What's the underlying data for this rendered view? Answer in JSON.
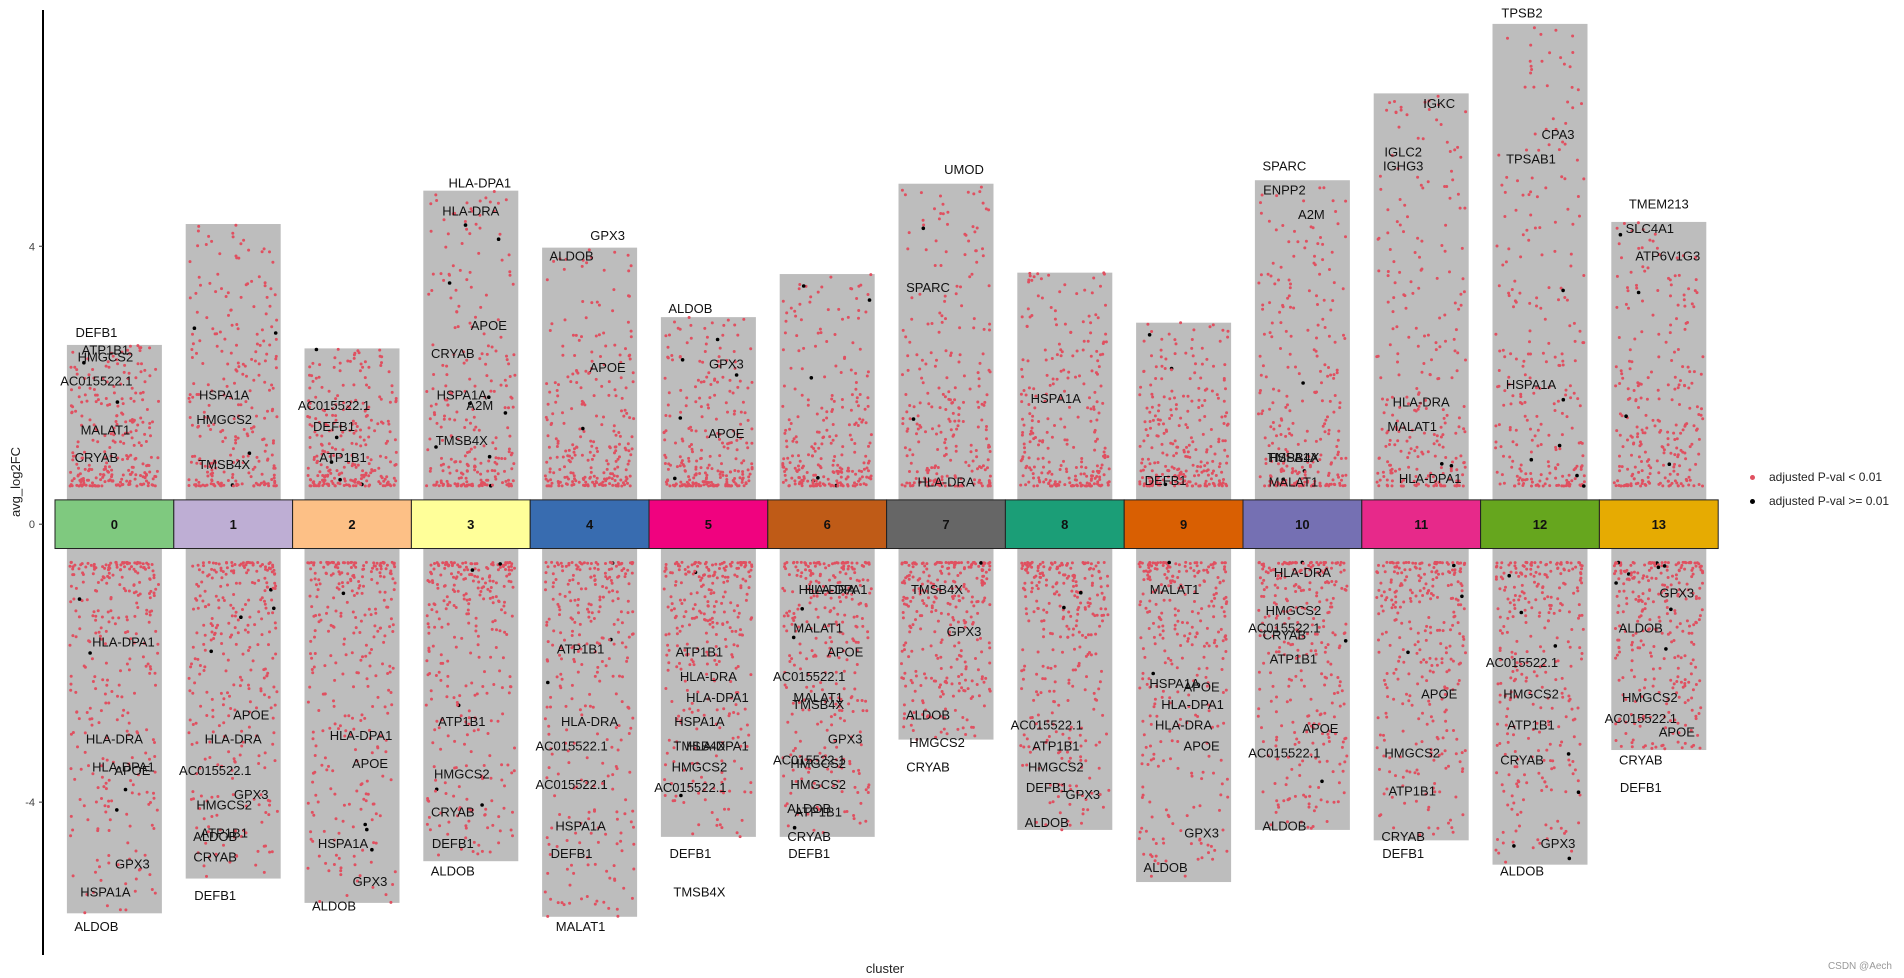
{
  "watermark": "CSDN @Aech",
  "legend": {
    "items": [
      {
        "label": "adjusted P-val < 0.01",
        "color": "#e05060"
      },
      {
        "label": "adjusted P-val >= 0.01",
        "color": "#000000"
      }
    ]
  },
  "chart_data": {
    "type": "scatter",
    "subtype": "jitter-volcano per cluster",
    "xlabel": "cluster",
    "ylabel": "avg_log2FC",
    "ylim": [
      -6.2,
      7.4
    ],
    "yticks": [
      -4,
      0,
      4
    ],
    "grid": false,
    "legend_position": "right",
    "clusters": [
      {
        "id": "0",
        "color": "#7fc97f",
        "up_max": 2.58,
        "down_min": -5.6
      },
      {
        "id": "1",
        "color": "#beaed4",
        "up_max": 4.32,
        "down_min": -5.1
      },
      {
        "id": "2",
        "color": "#fdc086",
        "up_max": 2.53,
        "down_min": -5.45
      },
      {
        "id": "3",
        "color": "#ffff99",
        "up_max": 4.8,
        "down_min": -4.85
      },
      {
        "id": "4",
        "color": "#386cb0",
        "up_max": 3.98,
        "down_min": -5.65
      },
      {
        "id": "5",
        "color": "#f0027f",
        "up_max": 2.98,
        "down_min": -4.5
      },
      {
        "id": "6",
        "color": "#bf5b17",
        "up_max": 3.6,
        "down_min": -4.5
      },
      {
        "id": "7",
        "color": "#666666",
        "up_max": 4.9,
        "down_min": -3.1
      },
      {
        "id": "8",
        "color": "#1b9e77",
        "up_max": 3.62,
        "down_min": -4.4
      },
      {
        "id": "9",
        "color": "#d95f02",
        "up_max": 2.9,
        "down_min": -5.15
      },
      {
        "id": "10",
        "color": "#7570b3",
        "up_max": 4.95,
        "down_min": -4.4
      },
      {
        "id": "11",
        "color": "#e7298a",
        "up_max": 6.2,
        "down_min": -4.55
      },
      {
        "id": "12",
        "color": "#66a61e",
        "up_max": 7.2,
        "down_min": -4.9
      },
      {
        "id": "13",
        "color": "#e6ab02",
        "up_max": 4.35,
        "down_min": -3.25
      }
    ],
    "gene_labels": [
      {
        "cluster": 0,
        "text": "DEFB1",
        "y": 2.75
      },
      {
        "cluster": 0,
        "text": "ATP1B1",
        "y": 2.5
      },
      {
        "cluster": 0,
        "text": "HMGCS2",
        "y": 2.4
      },
      {
        "cluster": 0,
        "text": "AC015522.1",
        "y": 2.05
      },
      {
        "cluster": 0,
        "text": "MALAT1",
        "y": 1.35
      },
      {
        "cluster": 0,
        "text": "CRYAB",
        "y": 0.95
      },
      {
        "cluster": 0,
        "text": "HLA-DPA1",
        "y": -1.7
      },
      {
        "cluster": 0,
        "text": "HLA-DRA",
        "y": -3.1
      },
      {
        "cluster": 0,
        "text": "HLA-DPA1",
        "y": -3.5
      },
      {
        "cluster": 0,
        "text": "APOE",
        "y": -3.55
      },
      {
        "cluster": 0,
        "text": "GPX3",
        "y": -4.9
      },
      {
        "cluster": 0,
        "text": "HSPA1A",
        "y": -5.3
      },
      {
        "cluster": 0,
        "text": "ALDOB",
        "y": -5.8
      },
      {
        "cluster": 1,
        "text": "HSPA1A",
        "y": 1.85
      },
      {
        "cluster": 1,
        "text": "HMGCS2",
        "y": 1.5
      },
      {
        "cluster": 1,
        "text": "TMSB4X",
        "y": 0.85
      },
      {
        "cluster": 1,
        "text": "APOE",
        "y": -2.75
      },
      {
        "cluster": 1,
        "text": "HLA-DRA",
        "y": -3.1
      },
      {
        "cluster": 1,
        "text": "AC015522.1",
        "y": -3.55
      },
      {
        "cluster": 1,
        "text": "GPX3",
        "y": -3.9
      },
      {
        "cluster": 1,
        "text": "HMGCS2",
        "y": -4.05
      },
      {
        "cluster": 1,
        "text": "ALDOB",
        "y": -4.5
      },
      {
        "cluster": 1,
        "text": "ATP1B1",
        "y": -4.45
      },
      {
        "cluster": 1,
        "text": "CRYAB",
        "y": -4.8
      },
      {
        "cluster": 1,
        "text": "DEFB1",
        "y": -5.35
      },
      {
        "cluster": 2,
        "text": "AC015522.1",
        "y": 1.7
      },
      {
        "cluster": 2,
        "text": "DEFB1",
        "y": 1.4
      },
      {
        "cluster": 2,
        "text": "ATP1B1",
        "y": 0.95
      },
      {
        "cluster": 2,
        "text": "HLA-DPA1",
        "y": -3.05
      },
      {
        "cluster": 2,
        "text": "APOE",
        "y": -3.45
      },
      {
        "cluster": 2,
        "text": "HSPA1A",
        "y": -4.6
      },
      {
        "cluster": 2,
        "text": "GPX3",
        "y": -5.15
      },
      {
        "cluster": 2,
        "text": "ALDOB",
        "y": -5.5
      },
      {
        "cluster": 3,
        "text": "HLA-DPA1",
        "y": 4.9
      },
      {
        "cluster": 3,
        "text": "HLA-DRA",
        "y": 4.5
      },
      {
        "cluster": 3,
        "text": "CRYAB",
        "y": 2.45
      },
      {
        "cluster": 3,
        "text": "APOE",
        "y": 2.85
      },
      {
        "cluster": 3,
        "text": "HSPA1A",
        "y": 1.85
      },
      {
        "cluster": 3,
        "text": "A2M",
        "y": 1.7
      },
      {
        "cluster": 3,
        "text": "TMSB4X",
        "y": 1.2
      },
      {
        "cluster": 3,
        "text": "ATP1B1",
        "y": -2.85
      },
      {
        "cluster": 3,
        "text": "HMGCS2",
        "y": -3.6
      },
      {
        "cluster": 3,
        "text": "CRYAB",
        "y": -4.15
      },
      {
        "cluster": 3,
        "text": "DEFB1",
        "y": -4.6
      },
      {
        "cluster": 3,
        "text": "ALDOB",
        "y": -5.0
      },
      {
        "cluster": 4,
        "text": "GPX3",
        "y": 4.15
      },
      {
        "cluster": 4,
        "text": "ALDOB",
        "y": 3.85
      },
      {
        "cluster": 4,
        "text": "APOE",
        "y": 2.25
      },
      {
        "cluster": 4,
        "text": "ATP1B1",
        "y": -1.8
      },
      {
        "cluster": 4,
        "text": "AC015522.1",
        "y": -3.2
      },
      {
        "cluster": 4,
        "text": "HLA-DRA",
        "y": -2.85
      },
      {
        "cluster": 4,
        "text": "AC015522.1",
        "y": -3.75
      },
      {
        "cluster": 4,
        "text": "HSPA1A",
        "y": -4.35
      },
      {
        "cluster": 4,
        "text": "DEFB1",
        "y": -4.75
      },
      {
        "cluster": 4,
        "text": "MALAT1",
        "y": -5.8
      },
      {
        "cluster": 5,
        "text": "ALDOB",
        "y": 3.1
      },
      {
        "cluster": 5,
        "text": "GPX3",
        "y": 2.3
      },
      {
        "cluster": 5,
        "text": "APOE",
        "y": 1.3
      },
      {
        "cluster": 5,
        "text": "ATP1B1",
        "y": -1.85
      },
      {
        "cluster": 5,
        "text": "HLA-DRA",
        "y": -2.2
      },
      {
        "cluster": 5,
        "text": "HLA-DPA1",
        "y": -2.5
      },
      {
        "cluster": 5,
        "text": "HSPA1A",
        "y": -2.85
      },
      {
        "cluster": 5,
        "text": "HLA-DPA1",
        "y": -3.2
      },
      {
        "cluster": 5,
        "text": "TMSB4X",
        "y": -3.2
      },
      {
        "cluster": 5,
        "text": "HMGCS2",
        "y": -3.5
      },
      {
        "cluster": 5,
        "text": "AC015522.1",
        "y": -3.8
      },
      {
        "cluster": 5,
        "text": "DEFB1",
        "y": -4.75
      },
      {
        "cluster": 5,
        "text": "TMSB4X",
        "y": -5.3
      },
      {
        "cluster": 6,
        "text": "HLA-DPA1",
        "y": -0.95
      },
      {
        "cluster": 6,
        "text": "HLA-DRA",
        "y": -0.95
      },
      {
        "cluster": 6,
        "text": "MALAT1",
        "y": -1.5
      },
      {
        "cluster": 6,
        "text": "APOE",
        "y": -1.85
      },
      {
        "cluster": 6,
        "text": "AC015522.1",
        "y": -2.2
      },
      {
        "cluster": 6,
        "text": "MALAT1",
        "y": -2.5
      },
      {
        "cluster": 6,
        "text": "TMSB4X",
        "y": -2.6
      },
      {
        "cluster": 6,
        "text": "GPX3",
        "y": -3.1
      },
      {
        "cluster": 6,
        "text": "HMGCS2",
        "y": -3.45
      },
      {
        "cluster": 6,
        "text": "AC015522.1",
        "y": -3.4
      },
      {
        "cluster": 6,
        "text": "HMGCS2",
        "y": -3.75
      },
      {
        "cluster": 6,
        "text": "ATP1B1",
        "y": -4.15
      },
      {
        "cluster": 6,
        "text": "ALDOB",
        "y": -4.1
      },
      {
        "cluster": 6,
        "text": "CRYAB",
        "y": -4.5
      },
      {
        "cluster": 6,
        "text": "DEFB1",
        "y": -4.75
      },
      {
        "cluster": 7,
        "text": "UMOD",
        "y": 5.1
      },
      {
        "cluster": 7,
        "text": "SPARC",
        "y": 3.4
      },
      {
        "cluster": 7,
        "text": "HLA-DRA",
        "y": 0.6
      },
      {
        "cluster": 7,
        "text": "TMSB4X",
        "y": -0.95
      },
      {
        "cluster": 7,
        "text": "GPX3",
        "y": -1.55
      },
      {
        "cluster": 7,
        "text": "ALDOB",
        "y": -2.75
      },
      {
        "cluster": 7,
        "text": "HMGCS2",
        "y": -3.15
      },
      {
        "cluster": 7,
        "text": "CRYAB",
        "y": -3.5
      },
      {
        "cluster": 8,
        "text": "HSPA1A",
        "y": 1.8
      },
      {
        "cluster": 8,
        "text": "AC015522.1",
        "y": -2.9
      },
      {
        "cluster": 8,
        "text": "ATP1B1",
        "y": -3.2
      },
      {
        "cluster": 8,
        "text": "HMGCS2",
        "y": -3.5
      },
      {
        "cluster": 8,
        "text": "DEFB1",
        "y": -3.8
      },
      {
        "cluster": 8,
        "text": "GPX3",
        "y": -3.9
      },
      {
        "cluster": 8,
        "text": "ALDOB",
        "y": -4.3
      },
      {
        "cluster": 9,
        "text": "DEFB1",
        "y": 0.62
      },
      {
        "cluster": 9,
        "text": "MALAT1",
        "y": -0.95
      },
      {
        "cluster": 9,
        "text": "APOE",
        "y": -2.35
      },
      {
        "cluster": 9,
        "text": "HSPA1A",
        "y": -2.3
      },
      {
        "cluster": 9,
        "text": "HLA-DPA1",
        "y": -2.6
      },
      {
        "cluster": 9,
        "text": "HLA-DRA",
        "y": -2.9
      },
      {
        "cluster": 9,
        "text": "APOE",
        "y": -3.2
      },
      {
        "cluster": 9,
        "text": "GPX3",
        "y": -4.45
      },
      {
        "cluster": 9,
        "text": "ALDOB",
        "y": -4.95
      },
      {
        "cluster": 10,
        "text": "SPARC",
        "y": 5.15
      },
      {
        "cluster": 10,
        "text": "ENPP2",
        "y": 4.8
      },
      {
        "cluster": 10,
        "text": "A2M",
        "y": 4.45
      },
      {
        "cluster": 10,
        "text": "TMSB4X",
        "y": 0.95
      },
      {
        "cluster": 10,
        "text": "HSPA1A",
        "y": 0.95
      },
      {
        "cluster": 10,
        "text": "MALAT1",
        "y": 0.6
      },
      {
        "cluster": 10,
        "text": "HLA-DRA",
        "y": -0.7
      },
      {
        "cluster": 10,
        "text": "HMGCS2",
        "y": -1.25
      },
      {
        "cluster": 10,
        "text": "AC015522.1",
        "y": -1.5
      },
      {
        "cluster": 10,
        "text": "CRYAB",
        "y": -1.6
      },
      {
        "cluster": 10,
        "text": "ATP1B1",
        "y": -1.95
      },
      {
        "cluster": 10,
        "text": "APOE",
        "y": -2.95
      },
      {
        "cluster": 10,
        "text": "AC015522.1",
        "y": -3.3
      },
      {
        "cluster": 10,
        "text": "ALDOB",
        "y": -4.35
      },
      {
        "cluster": 11,
        "text": "IGKC",
        "y": 6.05
      },
      {
        "cluster": 11,
        "text": "IGLC2",
        "y": 5.35
      },
      {
        "cluster": 11,
        "text": "IGHG3",
        "y": 5.15
      },
      {
        "cluster": 11,
        "text": "HLA-DRA",
        "y": 1.75
      },
      {
        "cluster": 11,
        "text": "MALAT1",
        "y": 1.4
      },
      {
        "cluster": 11,
        "text": "HLA-DPA1",
        "y": 0.65
      },
      {
        "cluster": 11,
        "text": "APOE",
        "y": -2.45
      },
      {
        "cluster": 11,
        "text": "ATP1B1",
        "y": -3.85
      },
      {
        "cluster": 11,
        "text": "HMGCS2",
        "y": -3.3
      },
      {
        "cluster": 11,
        "text": "CRYAB",
        "y": -4.5
      },
      {
        "cluster": 11,
        "text": "DEFB1",
        "y": -4.75
      },
      {
        "cluster": 12,
        "text": "TPSB2",
        "y": 7.35
      },
      {
        "cluster": 12,
        "text": "CPA3",
        "y": 5.6
      },
      {
        "cluster": 12,
        "text": "TPSAB1",
        "y": 5.25
      },
      {
        "cluster": 12,
        "text": "HSPA1A",
        "y": 2.0
      },
      {
        "cluster": 12,
        "text": "AC015522.1",
        "y": -2.0
      },
      {
        "cluster": 12,
        "text": "HMGCS2",
        "y": -2.45
      },
      {
        "cluster": 12,
        "text": "ATP1B1",
        "y": -2.9
      },
      {
        "cluster": 12,
        "text": "CRYAB",
        "y": -3.4
      },
      {
        "cluster": 12,
        "text": "GPX3",
        "y": -4.6
      },
      {
        "cluster": 12,
        "text": "ALDOB",
        "y": -5.0
      },
      {
        "cluster": 13,
        "text": "TMEM213",
        "y": 4.6
      },
      {
        "cluster": 13,
        "text": "SLC4A1",
        "y": 4.25
      },
      {
        "cluster": 13,
        "text": "ATP6V1G3",
        "y": 3.85
      },
      {
        "cluster": 13,
        "text": "GPX3",
        "y": -1.0
      },
      {
        "cluster": 13,
        "text": "ALDOB",
        "y": -1.5
      },
      {
        "cluster": 13,
        "text": "HMGCS2",
        "y": -2.5
      },
      {
        "cluster": 13,
        "text": "AC015522.1",
        "y": -2.8
      },
      {
        "cluster": 13,
        "text": "APOE",
        "y": -3.0
      },
      {
        "cluster": 13,
        "text": "CRYAB",
        "y": -3.4
      },
      {
        "cluster": 13,
        "text": "DEFB1",
        "y": -3.8
      }
    ]
  }
}
